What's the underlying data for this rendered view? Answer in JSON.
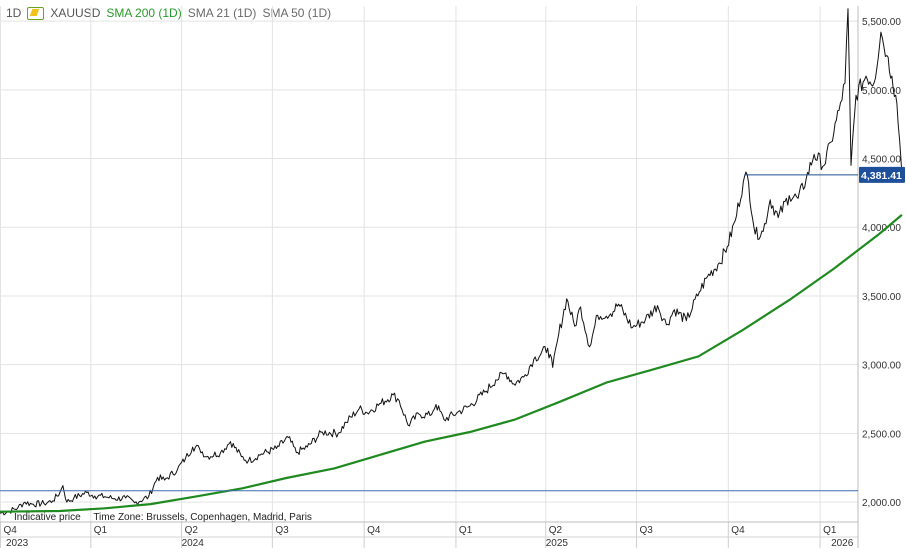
{
  "header": {
    "interval": "1D",
    "symbol": "XAUUSD",
    "indicators": [
      "SMA 200 (1D)",
      "SMA 21 (1D)",
      "SMA 50 (1D)"
    ]
  },
  "footer": {
    "indicative": "Indicative price",
    "timezone": "Time Zone: Brussels, Copenhagen, Madrid, Paris"
  },
  "colors": {
    "price": "#111111",
    "sma200": "#1f8a1f",
    "hline": "#1f4f8f",
    "badge": "#1e4f9a",
    "grid": "#e3e3e3"
  },
  "chart_data": {
    "type": "line",
    "x_quarter_labels": [
      "Q4",
      "Q1",
      "Q2",
      "Q3",
      "Q4",
      "Q1",
      "Q2",
      "Q3",
      "Q4",
      "Q1"
    ],
    "x_year_labels": [
      "2023",
      "2024",
      "2025",
      "2026"
    ],
    "y_ticks": [
      2000,
      2500,
      3000,
      3500,
      4000,
      4500,
      5000,
      5500
    ],
    "y_tick_labels": [
      "2,000.00",
      "2,500.00",
      "3,000.00",
      "3,500.00",
      "4,000.00",
      "4,500.00",
      "5,000.00",
      "5,500.00"
    ],
    "ylim": [
      1855,
      5610
    ],
    "x_start": "2023-10-02",
    "x_end": "2026-02-08",
    "last_price_label": "4,381.41",
    "last_price": 4381.41,
    "reference_level": 2082,
    "series": [
      {
        "name": "XAUUSD",
        "points": [
          [
            "2023-10-02",
            1920
          ],
          [
            "2023-10-10",
            1930
          ],
          [
            "2023-10-20",
            1960
          ],
          [
            "2023-10-27",
            2000
          ],
          [
            "2023-11-03",
            1985
          ],
          [
            "2023-11-15",
            1990
          ],
          [
            "2023-11-24",
            2010
          ],
          [
            "2023-12-01",
            2070
          ],
          [
            "2023-12-04",
            2120
          ],
          [
            "2023-12-08",
            2000
          ],
          [
            "2023-12-15",
            2030
          ],
          [
            "2023-12-28",
            2070
          ],
          [
            "2024-01-05",
            2045
          ],
          [
            "2024-01-15",
            2040
          ],
          [
            "2024-01-25",
            2025
          ],
          [
            "2024-02-05",
            2030
          ],
          [
            "2024-02-14",
            1995
          ],
          [
            "2024-02-28",
            2040
          ],
          [
            "2024-03-08",
            2180
          ],
          [
            "2024-03-15",
            2160
          ],
          [
            "2024-03-28",
            2240
          ],
          [
            "2024-04-05",
            2320
          ],
          [
            "2024-04-12",
            2400
          ],
          [
            "2024-04-19",
            2390
          ],
          [
            "2024-04-26",
            2330
          ],
          [
            "2024-05-10",
            2360
          ],
          [
            "2024-05-20",
            2440
          ],
          [
            "2024-05-31",
            2330
          ],
          [
            "2024-06-07",
            2300
          ],
          [
            "2024-06-20",
            2350
          ],
          [
            "2024-07-05",
            2390
          ],
          [
            "2024-07-17",
            2470
          ],
          [
            "2024-07-25",
            2360
          ],
          [
            "2024-08-05",
            2400
          ],
          [
            "2024-08-20",
            2510
          ],
          [
            "2024-09-05",
            2500
          ],
          [
            "2024-09-13",
            2580
          ],
          [
            "2024-09-26",
            2680
          ],
          [
            "2024-10-04",
            2650
          ],
          [
            "2024-10-18",
            2720
          ],
          [
            "2024-10-30",
            2780
          ],
          [
            "2024-11-05",
            2740
          ],
          [
            "2024-11-14",
            2560
          ],
          [
            "2024-11-25",
            2640
          ],
          [
            "2024-12-06",
            2630
          ],
          [
            "2024-12-12",
            2710
          ],
          [
            "2024-12-20",
            2600
          ],
          [
            "2025-01-02",
            2650
          ],
          [
            "2025-01-15",
            2700
          ],
          [
            "2025-01-30",
            2800
          ],
          [
            "2025-02-10",
            2890
          ],
          [
            "2025-02-20",
            2940
          ],
          [
            "2025-02-28",
            2860
          ],
          [
            "2025-03-10",
            2910
          ],
          [
            "2025-03-20",
            3040
          ],
          [
            "2025-04-03",
            3120
          ],
          [
            "2025-04-08",
            2980
          ],
          [
            "2025-04-14",
            3220
          ],
          [
            "2025-04-22",
            3480
          ],
          [
            "2025-04-30",
            3280
          ],
          [
            "2025-05-06",
            3420
          ],
          [
            "2025-05-15",
            3130
          ],
          [
            "2025-05-23",
            3360
          ],
          [
            "2025-06-05",
            3370
          ],
          [
            "2025-06-13",
            3440
          ],
          [
            "2025-06-27",
            3270
          ],
          [
            "2025-07-10",
            3330
          ],
          [
            "2025-07-22",
            3430
          ],
          [
            "2025-07-31",
            3290
          ],
          [
            "2025-08-08",
            3400
          ],
          [
            "2025-08-20",
            3320
          ],
          [
            "2025-09-02",
            3530
          ],
          [
            "2025-09-10",
            3640
          ],
          [
            "2025-09-22",
            3740
          ],
          [
            "2025-09-30",
            3860
          ],
          [
            "2025-10-08",
            4050
          ],
          [
            "2025-10-16",
            4330
          ],
          [
            "2025-10-20",
            4380
          ],
          [
            "2025-10-28",
            3950
          ],
          [
            "2025-11-05",
            3970
          ],
          [
            "2025-11-12",
            4200
          ],
          [
            "2025-11-20",
            4070
          ],
          [
            "2025-12-01",
            4230
          ],
          [
            "2025-12-10",
            4210
          ],
          [
            "2025-12-18",
            4350
          ],
          [
            "2025-12-26",
            4530
          ],
          [
            "2026-01-05",
            4450
          ],
          [
            "2026-01-12",
            4620
          ],
          [
            "2026-01-20",
            4850
          ],
          [
            "2026-01-26",
            5050
          ],
          [
            "2026-01-29",
            5590
          ],
          [
            "2026-02-01",
            4450
          ],
          [
            "2026-02-06",
            4960
          ],
          [
            "2026-02-16",
            5100
          ],
          [
            "2026-02-24",
            5050
          ],
          [
            "2026-03-03",
            5420
          ],
          [
            "2026-03-09",
            5250
          ],
          [
            "2026-03-14",
            5100
          ],
          [
            "2026-03-19",
            4900
          ],
          [
            "2026-03-23",
            4500
          ],
          [
            "2026-03-24",
            4381
          ]
        ]
      },
      {
        "name": "SMA 200 (1D)",
        "points": [
          [
            "2023-10-02",
            1930
          ],
          [
            "2023-12-01",
            1935
          ],
          [
            "2024-01-15",
            1955
          ],
          [
            "2024-03-01",
            1985
          ],
          [
            "2024-04-15",
            2040
          ],
          [
            "2024-06-01",
            2100
          ],
          [
            "2024-07-15",
            2175
          ],
          [
            "2024-09-01",
            2245
          ],
          [
            "2024-10-15",
            2340
          ],
          [
            "2024-12-01",
            2440
          ],
          [
            "2025-01-15",
            2510
          ],
          [
            "2025-03-01",
            2600
          ],
          [
            "2025-04-15",
            2730
          ],
          [
            "2025-06-01",
            2870
          ],
          [
            "2025-07-15",
            2960
          ],
          [
            "2025-09-01",
            3060
          ],
          [
            "2025-10-15",
            3250
          ],
          [
            "2025-12-01",
            3470
          ],
          [
            "2026-01-15",
            3700
          ],
          [
            "2026-03-01",
            3950
          ],
          [
            "2026-03-24",
            4090
          ]
        ]
      }
    ]
  }
}
